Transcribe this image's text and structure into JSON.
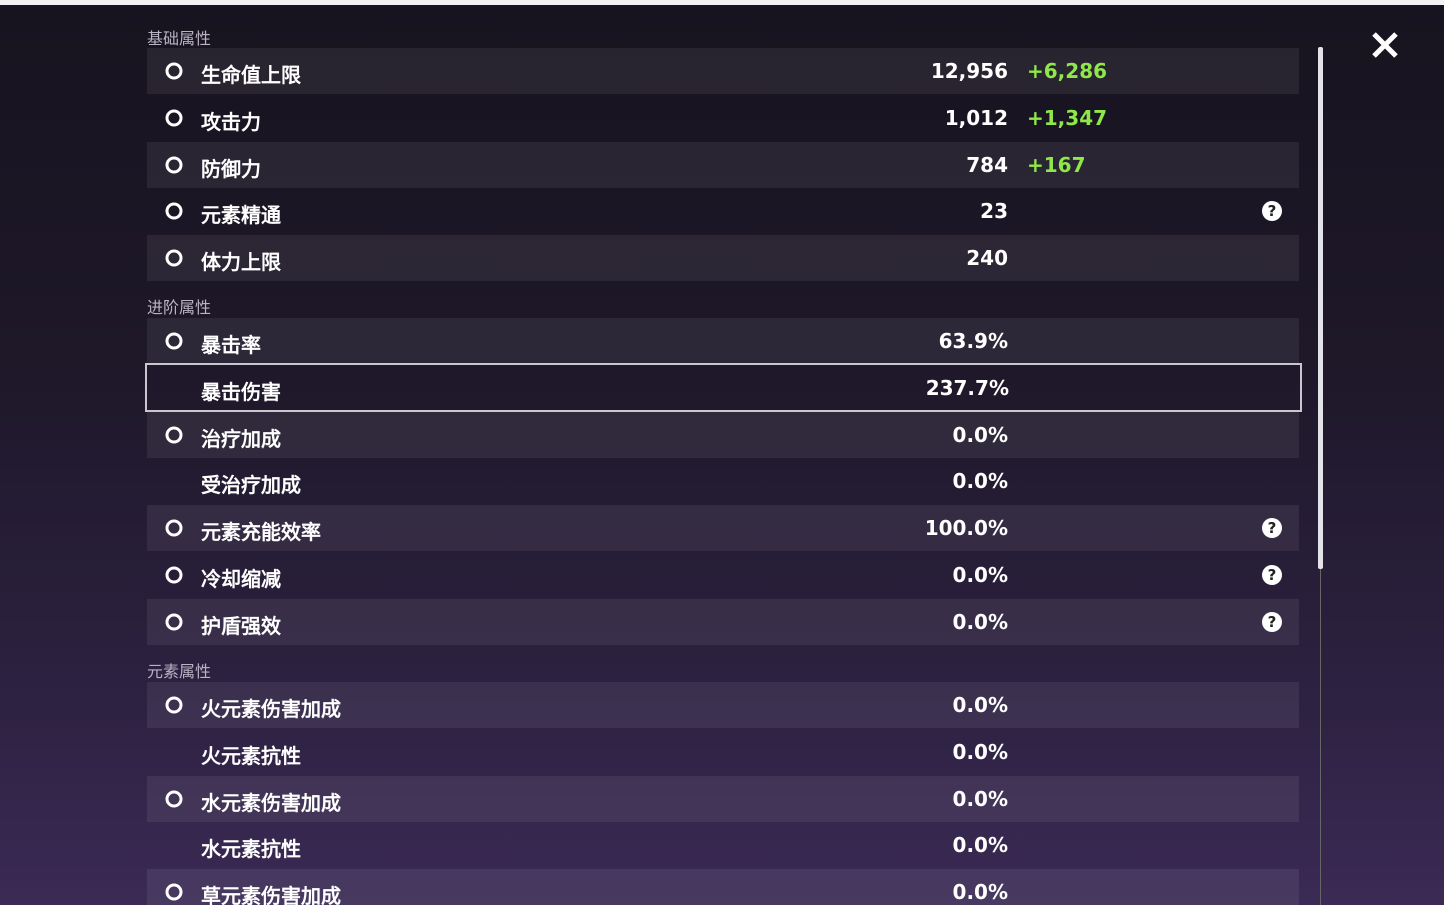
{
  "sections": [
    {
      "title": "基础属性",
      "top": 0,
      "rows": [
        {
          "label": "生命值上限",
          "value": "12,956",
          "bonus": "+6,286",
          "icon": true
        },
        {
          "label": "攻击力",
          "value": "1,012",
          "bonus": "+1,347",
          "icon": true
        },
        {
          "label": "防御力",
          "value": "784",
          "bonus": "+167",
          "icon": true
        },
        {
          "label": "元素精通",
          "value": "23",
          "icon": true,
          "help": true
        },
        {
          "label": "体力上限",
          "value": "240",
          "icon": true
        }
      ]
    },
    {
      "title": "进阶属性",
      "rows": [
        {
          "label": "暴击率",
          "value": "63.9%",
          "icon": true
        },
        {
          "label": "暴击伤害",
          "value": "237.7%",
          "icon": false,
          "selected": true
        },
        {
          "label": "治疗加成",
          "value": "0.0%",
          "icon": true
        },
        {
          "label": "受治疗加成",
          "value": "0.0%",
          "icon": false
        },
        {
          "label": "元素充能效率",
          "value": "100.0%",
          "icon": true,
          "help": true
        },
        {
          "label": "冷却缩减",
          "value": "0.0%",
          "icon": true,
          "help": true
        },
        {
          "label": "护盾强效",
          "value": "0.0%",
          "icon": true,
          "help": true
        }
      ]
    },
    {
      "title": "元素属性",
      "rows": [
        {
          "label": "火元素伤害加成",
          "value": "0.0%",
          "icon": true
        },
        {
          "label": "火元素抗性",
          "value": "0.0%",
          "icon": false
        },
        {
          "label": "水元素伤害加成",
          "value": "0.0%",
          "icon": true
        },
        {
          "label": "水元素抗性",
          "value": "0.0%",
          "icon": false
        },
        {
          "label": "草元素伤害加成",
          "value": "0.0%",
          "icon": true
        }
      ]
    }
  ]
}
